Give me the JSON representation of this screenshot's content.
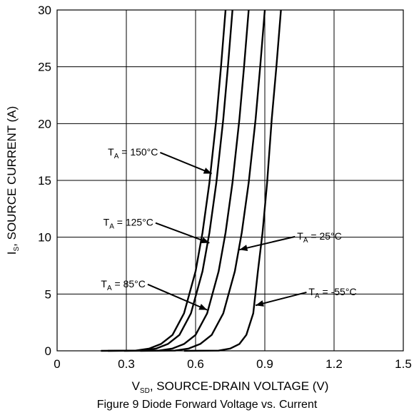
{
  "chart_data": {
    "type": "line",
    "title": "",
    "xlabel": {
      "main": "V",
      "sub": "SD",
      "rest": ", SOURCE-DRAIN VOLTAGE (V)"
    },
    "ylabel": {
      "main": "I",
      "sub": "S",
      "rest": ", SOURCE CURRENT (A)"
    },
    "xlim": [
      0,
      1.5
    ],
    "ylim": [
      0,
      30
    ],
    "x_ticks": [
      "0",
      "0.3",
      "0.6",
      "0.9",
      "1.2",
      "1.5"
    ],
    "y_ticks": [
      "0",
      "5",
      "10",
      "15",
      "20",
      "25",
      "30"
    ],
    "grid": true,
    "series": [
      {
        "name": "T_A = 150°C",
        "points": [
          [
            0.19,
            0
          ],
          [
            0.34,
            0.02
          ],
          [
            0.4,
            0.2
          ],
          [
            0.45,
            0.6
          ],
          [
            0.5,
            1.4
          ],
          [
            0.55,
            3.3
          ],
          [
            0.6,
            7.0
          ],
          [
            0.63,
            10.4
          ],
          [
            0.66,
            14.8
          ],
          [
            0.69,
            20.4
          ],
          [
            0.71,
            25.0
          ],
          [
            0.73,
            30.0
          ]
        ]
      },
      {
        "name": "T_A = 125°C",
        "points": [
          [
            0.22,
            0
          ],
          [
            0.37,
            0.02
          ],
          [
            0.43,
            0.2
          ],
          [
            0.48,
            0.6
          ],
          [
            0.53,
            1.4
          ],
          [
            0.58,
            3.3
          ],
          [
            0.63,
            7.0
          ],
          [
            0.66,
            10.4
          ],
          [
            0.69,
            14.8
          ],
          [
            0.72,
            20.4
          ],
          [
            0.74,
            25.0
          ],
          [
            0.76,
            30.0
          ]
        ]
      },
      {
        "name": "T_A = 85°C",
        "points": [
          [
            0.29,
            0
          ],
          [
            0.44,
            0.02
          ],
          [
            0.5,
            0.2
          ],
          [
            0.55,
            0.6
          ],
          [
            0.6,
            1.4
          ],
          [
            0.65,
            3.3
          ],
          [
            0.7,
            7.0
          ],
          [
            0.73,
            10.4
          ],
          [
            0.76,
            14.8
          ],
          [
            0.79,
            20.4
          ],
          [
            0.81,
            25.0
          ],
          [
            0.83,
            30.0
          ]
        ]
      },
      {
        "name": "T_A = 25°C",
        "points": [
          [
            0.36,
            0
          ],
          [
            0.51,
            0.02
          ],
          [
            0.57,
            0.2
          ],
          [
            0.62,
            0.6
          ],
          [
            0.67,
            1.4
          ],
          [
            0.72,
            3.3
          ],
          [
            0.77,
            7.0
          ],
          [
            0.8,
            10.4
          ],
          [
            0.83,
            14.8
          ],
          [
            0.86,
            20.4
          ],
          [
            0.88,
            25.0
          ],
          [
            0.9,
            30.0
          ]
        ]
      },
      {
        "name": "T_A = -55°C",
        "points": [
          [
            0.55,
            0
          ],
          [
            0.7,
            0.02
          ],
          [
            0.75,
            0.2
          ],
          [
            0.79,
            0.6
          ],
          [
            0.82,
            1.4
          ],
          [
            0.85,
            3.3
          ],
          [
            0.87,
            7.0
          ],
          [
            0.89,
            10.4
          ],
          [
            0.91,
            14.8
          ],
          [
            0.93,
            20.4
          ],
          [
            0.95,
            25.0
          ],
          [
            0.97,
            30.0
          ]
        ]
      }
    ],
    "annotations": [
      {
        "text_main": "T",
        "text_sub": "A",
        "text_rest": " = 150°C",
        "label_at": [
          0.22,
          17.2
        ],
        "arrow_to": [
          0.67,
          15.6
        ]
      },
      {
        "text_main": "T",
        "text_sub": "A",
        "text_rest": " = 125°C",
        "label_at": [
          0.2,
          11.0
        ],
        "arrow_to": [
          0.66,
          9.5
        ]
      },
      {
        "text_main": "T",
        "text_sub": "A",
        "text_rest": " = 85°C",
        "label_at": [
          0.19,
          5.6
        ],
        "arrow_to": [
          0.65,
          3.6
        ]
      },
      {
        "text_main": "T",
        "text_sub": "A",
        "text_rest": " = 25°C",
        "label_at": [
          1.04,
          9.8
        ],
        "arrow_to": [
          0.79,
          8.9
        ]
      },
      {
        "text_main": "T",
        "text_sub": "A",
        "text_rest": " = -55°C",
        "label_at": [
          1.09,
          4.9
        ],
        "arrow_to": [
          0.86,
          4.0
        ]
      }
    ]
  },
  "caption": "Figure 9 Diode Forward Voltage vs. Current"
}
